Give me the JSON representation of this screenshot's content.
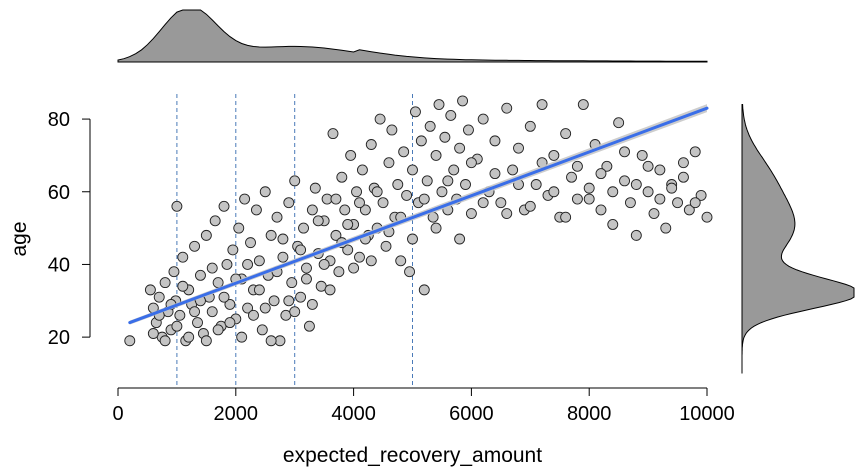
{
  "chart_data": {
    "type": "scatter",
    "title": "",
    "xlabel": "expected_recovery_amount",
    "ylabel": "age",
    "xlim": [
      0,
      10000
    ],
    "ylim": [
      6,
      88
    ],
    "x_ticks": [
      0,
      2000,
      4000,
      6000,
      8000,
      10000
    ],
    "x_tick_labels": [
      "0",
      "2000",
      "4000",
      "6000",
      "8000",
      "10000"
    ],
    "y_ticks": [
      20,
      40,
      60,
      80
    ],
    "y_tick_labels": [
      "20",
      "40",
      "60",
      "80"
    ],
    "grid": false,
    "legend": "none",
    "reference_lines_x": [
      1000,
      2000,
      3000,
      5000
    ],
    "regression_line": {
      "x": [
        200,
        10000
      ],
      "y": [
        24,
        83
      ]
    },
    "marginal_x_density_peak": 1200,
    "marginal_y_density_peak": 32,
    "points": [
      [
        200,
        19
      ],
      [
        550,
        33
      ],
      [
        600,
        28
      ],
      [
        650,
        24
      ],
      [
        700,
        31
      ],
      [
        750,
        20
      ],
      [
        800,
        35
      ],
      [
        850,
        27
      ],
      [
        900,
        22
      ],
      [
        950,
        38
      ],
      [
        1000,
        56
      ],
      [
        980,
        30
      ],
      [
        1050,
        26
      ],
      [
        1100,
        42
      ],
      [
        1150,
        19
      ],
      [
        1200,
        33
      ],
      [
        1250,
        29
      ],
      [
        1300,
        45
      ],
      [
        1350,
        24
      ],
      [
        1400,
        37
      ],
      [
        1450,
        21
      ],
      [
        1500,
        48
      ],
      [
        1550,
        31
      ],
      [
        1600,
        27
      ],
      [
        1650,
        52
      ],
      [
        1700,
        35
      ],
      [
        1750,
        23
      ],
      [
        1800,
        56
      ],
      [
        1850,
        40
      ],
      [
        1900,
        29
      ],
      [
        1950,
        44
      ],
      [
        2000,
        25
      ],
      [
        2050,
        50
      ],
      [
        2100,
        36
      ],
      [
        2150,
        58
      ],
      [
        2200,
        28
      ],
      [
        2250,
        46
      ],
      [
        2300,
        33
      ],
      [
        2350,
        55
      ],
      [
        2400,
        41
      ],
      [
        2450,
        22
      ],
      [
        2500,
        60
      ],
      [
        2550,
        37
      ],
      [
        2600,
        48
      ],
      [
        2650,
        30
      ],
      [
        2700,
        53
      ],
      [
        2750,
        19
      ],
      [
        2800,
        42
      ],
      [
        2850,
        26
      ],
      [
        2900,
        57
      ],
      [
        2950,
        35
      ],
      [
        3000,
        63
      ],
      [
        3050,
        45
      ],
      [
        3100,
        31
      ],
      [
        3150,
        50
      ],
      [
        3200,
        39
      ],
      [
        3250,
        23
      ],
      [
        3300,
        55
      ],
      [
        3350,
        61
      ],
      [
        3400,
        43
      ],
      [
        3450,
        34
      ],
      [
        3500,
        52
      ],
      [
        3550,
        58
      ],
      [
        3600,
        41
      ],
      [
        3650,
        76
      ],
      [
        3700,
        48
      ],
      [
        3750,
        38
      ],
      [
        3800,
        64
      ],
      [
        3850,
        55
      ],
      [
        3900,
        44
      ],
      [
        3950,
        70
      ],
      [
        4000,
        51
      ],
      [
        4050,
        60
      ],
      [
        4100,
        42
      ],
      [
        4150,
        66
      ],
      [
        4200,
        55
      ],
      [
        4250,
        48
      ],
      [
        4300,
        73
      ],
      [
        4350,
        61
      ],
      [
        4400,
        50
      ],
      [
        4450,
        80
      ],
      [
        4500,
        57
      ],
      [
        4550,
        45
      ],
      [
        4600,
        68
      ],
      [
        4650,
        77
      ],
      [
        4700,
        53
      ],
      [
        4750,
        62
      ],
      [
        4800,
        41
      ],
      [
        4850,
        71
      ],
      [
        4900,
        59
      ],
      [
        4950,
        38
      ],
      [
        5000,
        66
      ],
      [
        5050,
        82
      ],
      [
        5100,
        57
      ],
      [
        5150,
        74
      ],
      [
        5200,
        33
      ],
      [
        5250,
        63
      ],
      [
        5300,
        78
      ],
      [
        5350,
        53
      ],
      [
        5400,
        70
      ],
      [
        5450,
        84
      ],
      [
        5500,
        60
      ],
      [
        5550,
        75
      ],
      [
        5600,
        55
      ],
      [
        5650,
        81
      ],
      [
        5700,
        66
      ],
      [
        5750,
        58
      ],
      [
        5800,
        72
      ],
      [
        5850,
        85
      ],
      [
        5900,
        62
      ],
      [
        5950,
        77
      ],
      [
        6000,
        54
      ],
      [
        6100,
        69
      ],
      [
        6200,
        80
      ],
      [
        6300,
        60
      ],
      [
        6400,
        74
      ],
      [
        6500,
        57
      ],
      [
        6600,
        83
      ],
      [
        6700,
        66
      ],
      [
        6800,
        72
      ],
      [
        6900,
        55
      ],
      [
        7000,
        78
      ],
      [
        7100,
        62
      ],
      [
        7200,
        84
      ],
      [
        7300,
        59
      ],
      [
        7400,
        70
      ],
      [
        7500,
        53
      ],
      [
        7600,
        76
      ],
      [
        7700,
        64
      ],
      [
        7800,
        58
      ],
      [
        7900,
        84
      ],
      [
        8000,
        61
      ],
      [
        8100,
        73
      ],
      [
        8200,
        55
      ],
      [
        8300,
        67
      ],
      [
        8400,
        51
      ],
      [
        8500,
        79
      ],
      [
        8600,
        63
      ],
      [
        8700,
        57
      ],
      [
        8800,
        48
      ],
      [
        8900,
        70
      ],
      [
        9000,
        60
      ],
      [
        9100,
        54
      ],
      [
        9200,
        66
      ],
      [
        9300,
        50
      ],
      [
        9400,
        62
      ],
      [
        9500,
        57
      ],
      [
        9600,
        68
      ],
      [
        9700,
        55
      ],
      [
        9800,
        71
      ],
      [
        9900,
        59
      ],
      [
        10000,
        53
      ],
      [
        600,
        21
      ],
      [
        700,
        26
      ],
      [
        800,
        19
      ],
      [
        900,
        29
      ],
      [
        1000,
        23
      ],
      [
        1100,
        34
      ],
      [
        1200,
        20
      ],
      [
        1300,
        27
      ],
      [
        1400,
        30
      ],
      [
        1500,
        19
      ],
      [
        1600,
        39
      ],
      [
        1700,
        22
      ],
      [
        1800,
        31
      ],
      [
        1900,
        24
      ],
      [
        2000,
        36
      ],
      [
        2100,
        20
      ],
      [
        2200,
        40
      ],
      [
        2300,
        26
      ],
      [
        2400,
        33
      ],
      [
        2500,
        28
      ],
      [
        2600,
        19
      ],
      [
        2700,
        38
      ],
      [
        2800,
        47
      ],
      [
        2900,
        30
      ],
      [
        3000,
        27
      ],
      [
        3100,
        44
      ],
      [
        3200,
        36
      ],
      [
        3300,
        29
      ],
      [
        3400,
        52
      ],
      [
        3500,
        40
      ],
      [
        3600,
        33
      ],
      [
        3700,
        58
      ],
      [
        3800,
        46
      ],
      [
        3900,
        51
      ],
      [
        4000,
        39
      ],
      [
        4100,
        57
      ],
      [
        4200,
        47
      ],
      [
        4300,
        41
      ],
      [
        4400,
        60
      ],
      [
        4600,
        49
      ],
      [
        4800,
        53
      ],
      [
        5000,
        47
      ],
      [
        5200,
        58
      ],
      [
        5400,
        50
      ],
      [
        5600,
        63
      ],
      [
        5800,
        47
      ],
      [
        6000,
        68
      ],
      [
        6200,
        57
      ],
      [
        6400,
        65
      ],
      [
        6600,
        54
      ],
      [
        6800,
        62
      ],
      [
        7000,
        56
      ],
      [
        7200,
        68
      ],
      [
        7400,
        60
      ],
      [
        7600,
        53
      ],
      [
        7800,
        67
      ],
      [
        8000,
        58
      ],
      [
        8200,
        65
      ],
      [
        8400,
        60
      ],
      [
        8600,
        71
      ],
      [
        8800,
        62
      ],
      [
        9000,
        67
      ],
      [
        9200,
        58
      ],
      [
        9400,
        61
      ],
      [
        9600,
        64
      ],
      [
        9800,
        57
      ]
    ]
  }
}
